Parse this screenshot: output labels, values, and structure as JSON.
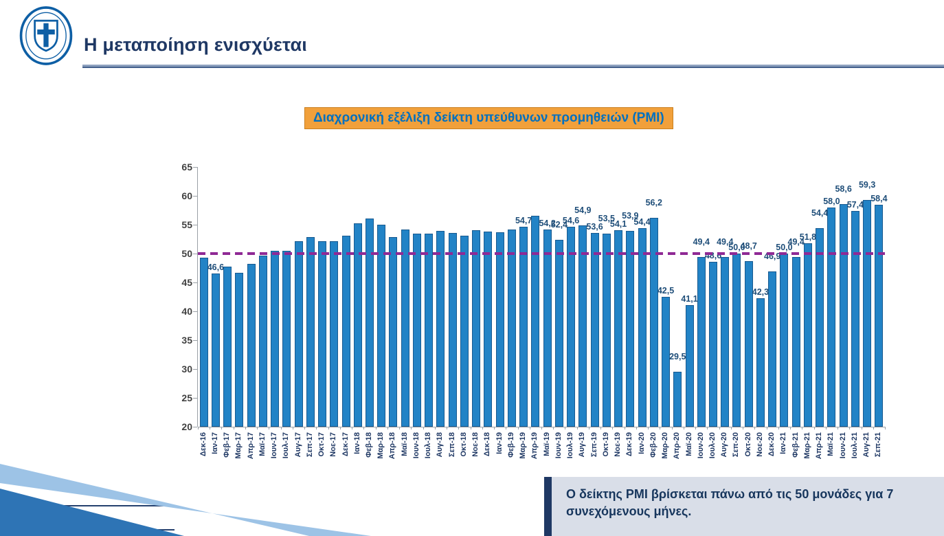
{
  "header": {
    "title": "Η μεταποίηση ενισχύεται"
  },
  "chart": {
    "title": "Διαχρονική εξέλιξη δείκτη υπεύθυνων προμηθειών (PMI)"
  },
  "callout": {
    "text": "Ο δείκτης PMI βρίσκεται πάνω από τις 50 μονάδες για 7 συνεχόμενους μήνες."
  },
  "icons": {
    "logo": "hellenic-republic-emblem"
  },
  "colors": {
    "bar": "#2283C6",
    "bar_border": "#17598F",
    "reference_line": "#8F2A95",
    "accent_orange": "#F1A03B",
    "title_navy": "#1F3864",
    "chart_title_text": "#0070C0",
    "callout_bg": "#D9DEE8"
  },
  "chart_data": {
    "type": "bar",
    "title": "Διαχρονική εξέλιξη δείκτη υπεύθυνων προμηθειών (PMI)",
    "xlabel": "",
    "ylabel": "",
    "ylim": [
      20,
      65
    ],
    "yticks": [
      20,
      25,
      30,
      35,
      40,
      45,
      50,
      55,
      60,
      65
    ],
    "reference_line": 50,
    "bar_color": "#2283C6",
    "bar_border_color": "#17598F",
    "reference_color": "#8F2A95",
    "layout": {
      "grid": false,
      "legend": "none",
      "x_label_rotation_deg": 90
    },
    "categories": [
      "Δεκ-16",
      "Ιαν-17",
      "Φεβ-17",
      "Μαρ-17",
      "Απρ-17",
      "Μαϊ-17",
      "Ιουν-17",
      "Ιουλ-17",
      "Αυγ-17",
      "Σεπ-17",
      "Οκτ-17",
      "Νοε-17",
      "Δεκ-17",
      "Ιαν-18",
      "Φεβ-18",
      "Μαρ-18",
      "Απρ-18",
      "Μαϊ-18",
      "Ιουν-18",
      "Ιουλ-18",
      "Αυγ-18",
      "Σεπ-18",
      "Οκτ-18",
      "Νοε-18",
      "Δεκ-18",
      "Ιαν-19",
      "Φεβ-19",
      "Μαρ-19",
      "Απρ-19",
      "Μαϊ-19",
      "Ιουν-19",
      "Ιουλ-19",
      "Αυγ-19",
      "Σεπ-19",
      "Οκτ-19",
      "Νοε-19",
      "Δεκ-19",
      "Ιαν-20",
      "Φεβ-20",
      "Μαρ-20",
      "Απρ-20",
      "Μαϊ-20",
      "Ιουν-20",
      "Ιουλ-20",
      "Αυγ-20",
      "Σεπ-20",
      "Οκτ-20",
      "Νοε-20",
      "Δεκ-20",
      "Ιαν-21",
      "Φεβ-21",
      "Μαρ-21",
      "Απρ-21",
      "Μαϊ-21",
      "Ιουν-21",
      "Ιουλ-21",
      "Αυγ-21",
      "Σεπ-21"
    ],
    "values": [
      49.3,
      46.6,
      47.7,
      46.7,
      48.2,
      49.6,
      50.5,
      50.5,
      52.2,
      52.8,
      52.1,
      52.2,
      53.1,
      55.2,
      56.1,
      55.0,
      52.9,
      54.2,
      53.5,
      53.5,
      53.9,
      53.6,
      53.1,
      54.0,
      53.8,
      53.7,
      54.2,
      54.7,
      56.6,
      54.2,
      52.4,
      54.6,
      54.9,
      53.6,
      53.5,
      54.1,
      53.9,
      54.4,
      56.2,
      42.5,
      29.5,
      41.1,
      49.4,
      48.6,
      49.4,
      50.0,
      48.7,
      42.3,
      46.9,
      50.0,
      49.4,
      51.8,
      54.4,
      58.0,
      58.6,
      57.4,
      59.3,
      58.4
    ],
    "labels": [
      "",
      "46,6",
      "",
      "",
      "",
      "",
      "",
      "",
      "",
      "",
      "",
      "",
      "",
      "",
      "",
      "",
      "",
      "",
      "",
      "",
      "",
      "",
      "",
      "",
      "",
      "",
      "",
      "54,7",
      "",
      "54,2",
      "52,4",
      "54,6",
      "54,9",
      "53,6",
      "53,5",
      "54,1",
      "53,9",
      "54,4",
      "56,2",
      "42,5",
      "29,5",
      "41,1",
      "49,4",
      "48,6",
      "49,4",
      "50,0",
      "48,7",
      "42,3",
      "46,9",
      "50,0",
      "49,4",
      "51,8",
      "54,4",
      "58,0",
      "58,6",
      "57,4",
      "59,3",
      "58,4"
    ]
  }
}
